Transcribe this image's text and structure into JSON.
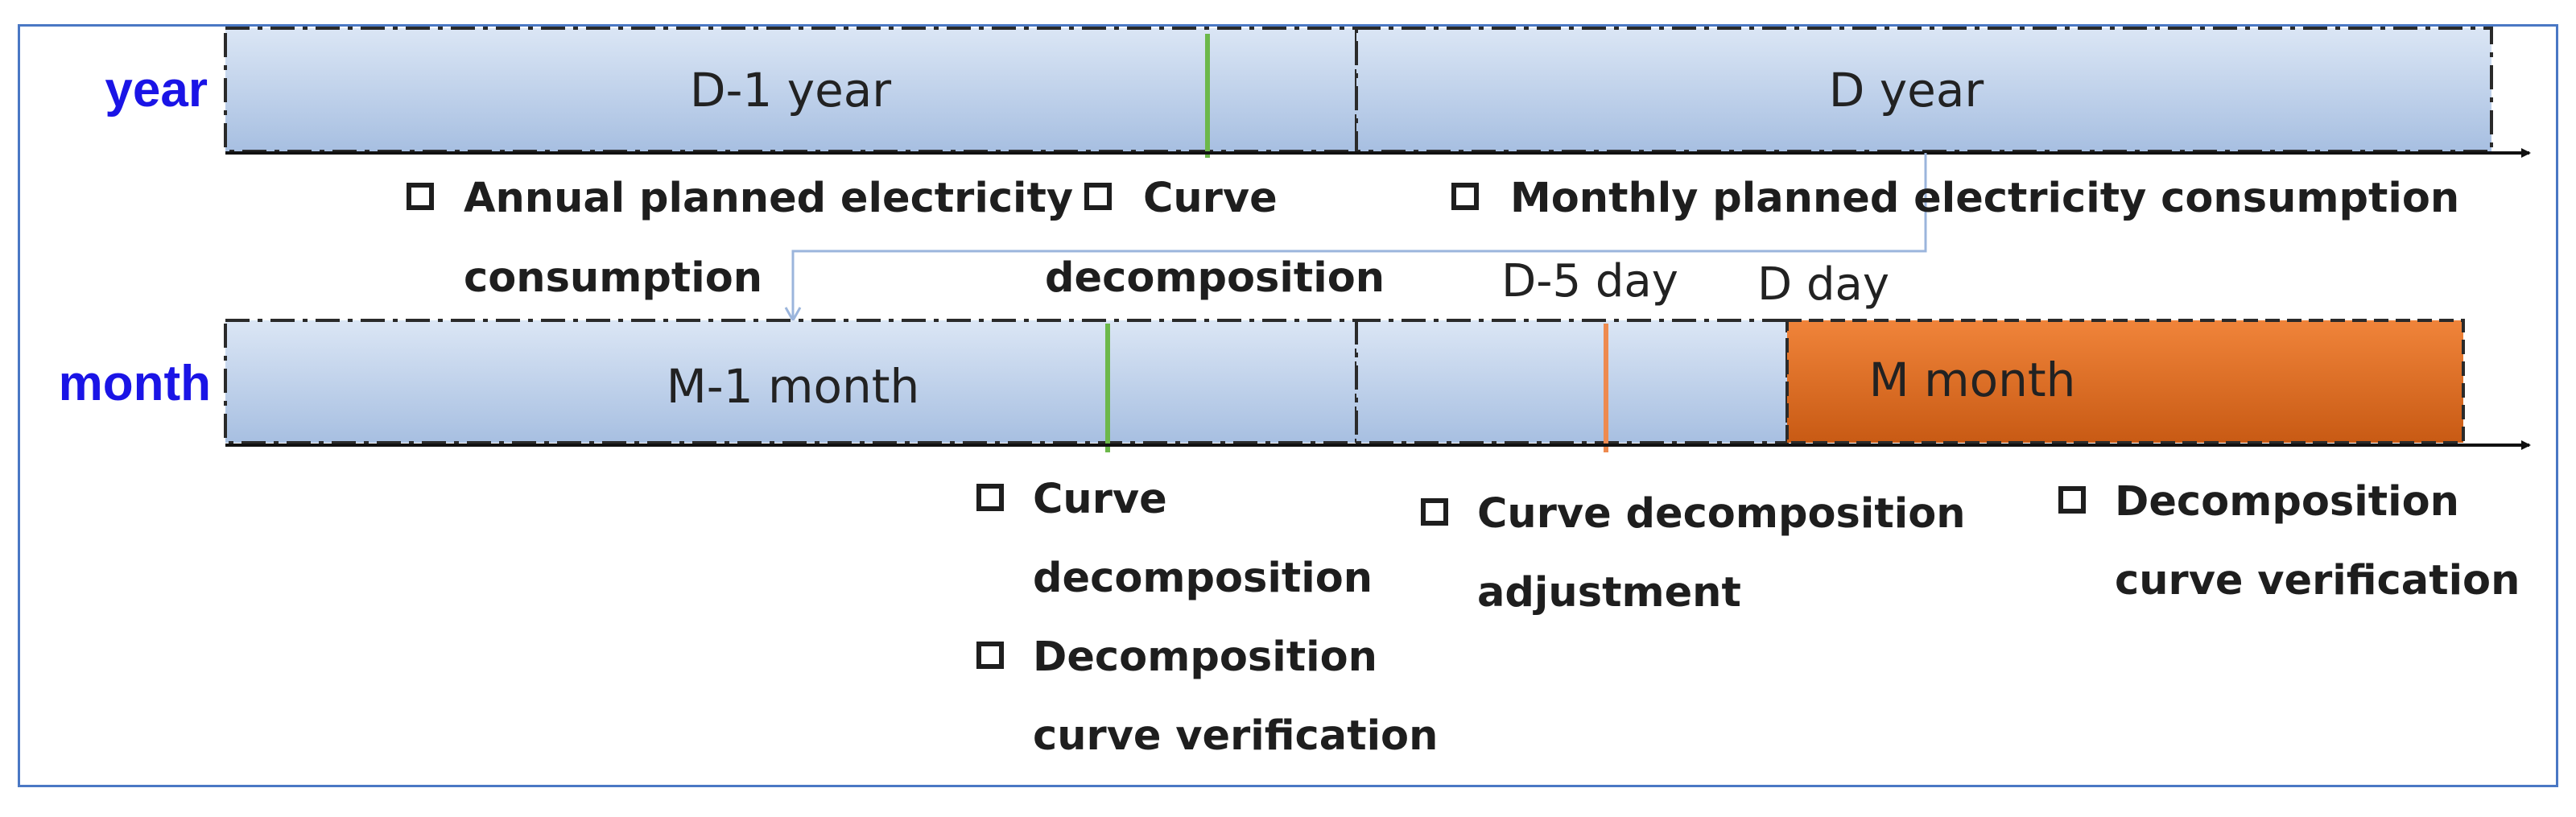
{
  "colors": {
    "row_label": "#1a14e6",
    "bar_fill_top": "#dbe6f5",
    "bar_fill_bottom": "#a7bfe1",
    "highlight_fill_top": "#f0843a",
    "highlight_fill_bottom": "#c85a14",
    "green_marker": "#6cb84a",
    "orange_marker": "#ee8a4f",
    "connector": "#9bb5dc"
  },
  "rows": {
    "year": {
      "label": "year",
      "periods": [
        {
          "label": "D-1 year"
        },
        {
          "label": "D year"
        }
      ],
      "tasks": [
        {
          "lines": [
            "Annual planned electricity",
            "consumption"
          ]
        },
        {
          "lines": [
            "Curve",
            "decomposition"
          ]
        },
        {
          "lines": [
            "Monthly planned electricity consumption"
          ]
        }
      ]
    },
    "month": {
      "label": "month",
      "periods": [
        {
          "label": "M-1 month"
        },
        {
          "label": ""
        },
        {
          "label": "M month"
        }
      ],
      "day_markers": [
        {
          "label": "D-5 day"
        },
        {
          "label": "D day"
        }
      ],
      "tasks": [
        {
          "lines": [
            "Curve",
            "decomposition"
          ]
        },
        {
          "lines": [
            "Decomposition",
            "curve verification"
          ]
        },
        {
          "lines": [
            "Curve decomposition",
            "adjustment"
          ]
        },
        {
          "lines": [
            "Decomposition",
            "curve verification"
          ]
        }
      ]
    }
  }
}
